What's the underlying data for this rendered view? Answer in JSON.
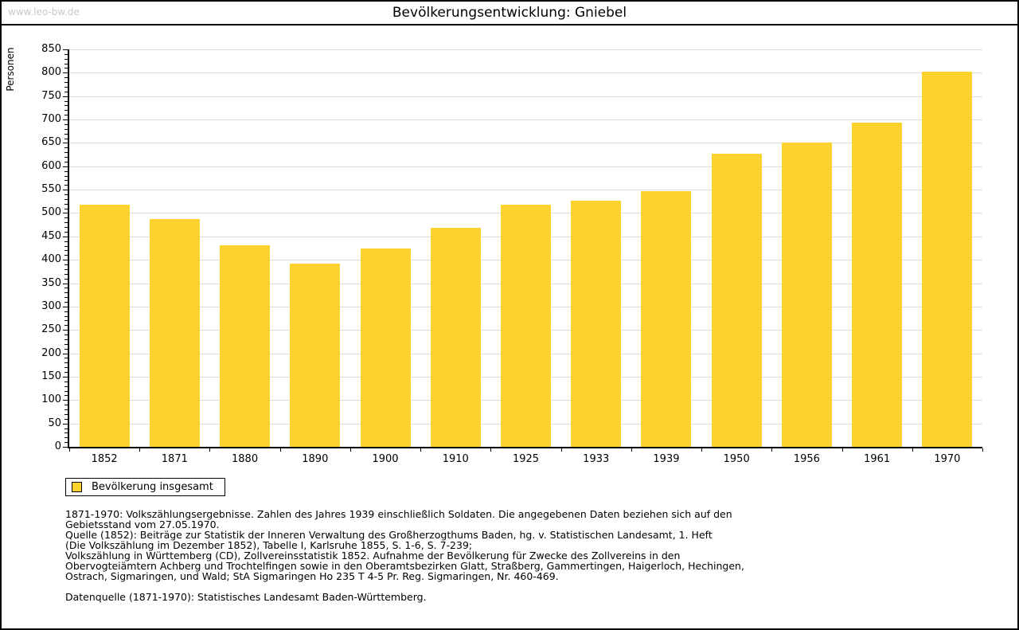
{
  "page": {
    "watermark": "www.leo-bw.de",
    "title": "Bevölkerungsentwicklung: Gniebel"
  },
  "chart_data": {
    "type": "bar",
    "title": "Bevölkerungsentwicklung: Gniebel",
    "xlabel": "",
    "ylabel": "Personen",
    "ylim": [
      0,
      850
    ],
    "ytick_step": 50,
    "minor_tick_step": 10,
    "grid": true,
    "legend_position": "bottom-left",
    "categories": [
      "1852",
      "1871",
      "1880",
      "1890",
      "1900",
      "1910",
      "1925",
      "1933",
      "1939",
      "1950",
      "1956",
      "1961",
      "1970"
    ],
    "series": [
      {
        "name": "Bevölkerung insgesamt",
        "values": [
          517,
          488,
          431,
          391,
          424,
          468,
          518,
          526,
          547,
          627,
          650,
          694,
          803
        ],
        "color": "#fcd22e"
      }
    ]
  },
  "legend": {
    "label": "Bevölkerung insgesamt",
    "swatch_color": "#fcd22e"
  },
  "footnotes": {
    "lines": [
      "1871-1970: Volkszählungsergebnisse. Zahlen des Jahres 1939 einschließlich Soldaten. Die angegebenen Daten beziehen sich auf den",
      "Gebietsstand vom 27.05.1970.",
      "Quelle (1852): Beiträge zur Statistik der Inneren Verwaltung des Großherzogthums Baden, hg. v. Statistischen Landesamt, 1. Heft",
      "(Die Volkszählung im Dezember 1852), Tabelle I, Karlsruhe 1855, S. 1-6, S. 7-239;",
      "Volkszählung in Württemberg (CD), Zollvereinsstatistik 1852. Aufnahme der Bevölkerung für Zwecke des Zollvereins in den",
      "Obervogteiämtern Achberg und Trochtelfingen sowie in den Oberamtsbezirken Glatt, Straßberg, Gammertingen, Haigerloch, Hechingen,",
      "Ostrach, Sigmaringen, und Wald; StA Sigmaringen Ho 235 T 4-5 Pr. Reg. Sigmaringen, Nr. 460-469."
    ],
    "datasource": "Datenquelle (1871-1970): Statistisches Landesamt Baden-Württemberg."
  },
  "colors": {
    "bar_fill": "#fcd22e",
    "gridline": "#dcdcdc",
    "axis": "#000000",
    "watermark": "#c9c9c9",
    "background": "#ffffff"
  }
}
